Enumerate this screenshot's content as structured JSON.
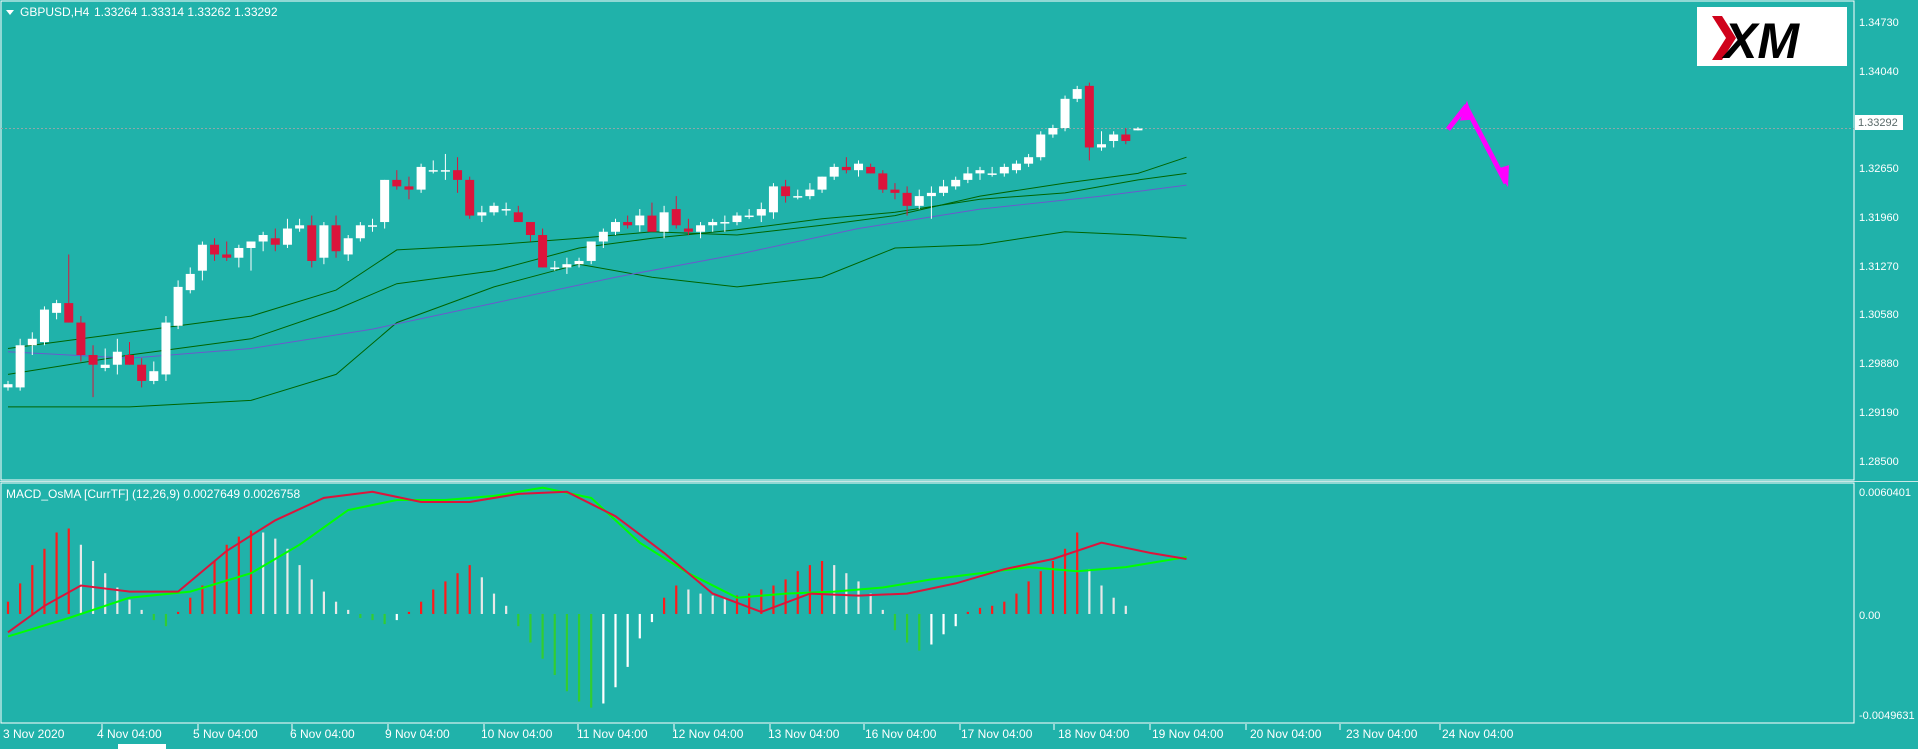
{
  "header": {
    "symbol": "GBPUSD,H4",
    "ohlc": "1.33264 1.33314 1.33262 1.33292"
  },
  "logo": {
    "text": "XM"
  },
  "price_panel": {
    "axis_labels": [
      "1.34730",
      "1.34040",
      "1.32650",
      "1.31960",
      "1.31270",
      "1.30580",
      "1.29880",
      "1.29190",
      "1.28500"
    ],
    "current_price": "1.33292"
  },
  "macd_panel": {
    "title": "MACD_OsMA [CurrTF] (12,26,9) 0.0027649 0.0026758",
    "axis_labels": [
      "0.0060401",
      "0.00",
      "-0.0049631"
    ]
  },
  "time_axis": {
    "labels": [
      "3 Nov 2020",
      "4 Nov 04:00",
      "5 Nov 04:00",
      "6 Nov 04:00",
      "9 Nov 04:00",
      "10 Nov 04:00",
      "11 Nov 04:00",
      "12 Nov 04:00",
      "13 Nov 04:00",
      "16 Nov 04:00",
      "17 Nov 04:00",
      "18 Nov 04:00",
      "19 Nov 04:00",
      "20 Nov 04:00",
      "23 Nov 04:00",
      "24 Nov 04:00"
    ]
  },
  "colors": {
    "background": "#20B2AA",
    "bull_candle": "#FFFFFF",
    "bear_candle": "#DC143C",
    "bollinger": "#006400",
    "moving_average": "#6A5ACD",
    "macd_line": "#DC143C",
    "signal_line": "#00FF00",
    "forecast_arrow": "#FF00FF"
  },
  "chart_data": [
    {
      "type": "candlestick",
      "title": "GBPUSD,H4",
      "ylim": [
        1.2815,
        1.3495
      ],
      "candles": [
        [
          1.293,
          1.294,
          1.2925,
          1.2935
        ],
        [
          1.293,
          1.3005,
          1.2925,
          1.2995
        ],
        [
          1.2995,
          1.3015,
          1.298,
          1.3005
        ],
        [
          1.3,
          1.3055,
          1.2995,
          1.305
        ],
        [
          1.3045,
          1.3065,
          1.3035,
          1.306
        ],
        [
          1.306,
          1.3135,
          1.303,
          1.303
        ],
        [
          1.303,
          1.304,
          1.297,
          1.298
        ],
        [
          1.298,
          1.2995,
          1.2915,
          1.2965
        ],
        [
          1.296,
          1.299,
          1.2955,
          1.2965
        ],
        [
          1.2965,
          1.3005,
          1.295,
          1.2985
        ],
        [
          1.298,
          1.3,
          1.2965,
          1.2965
        ],
        [
          1.2965,
          1.2975,
          1.293,
          1.294
        ],
        [
          1.294,
          1.297,
          1.2935,
          1.2955
        ],
        [
          1.295,
          1.304,
          1.294,
          1.303
        ],
        [
          1.3025,
          1.3095,
          1.302,
          1.3085
        ],
        [
          1.308,
          1.3115,
          1.3075,
          1.3105
        ],
        [
          1.311,
          1.3155,
          1.3095,
          1.315
        ],
        [
          1.315,
          1.316,
          1.3125,
          1.3135
        ],
        [
          1.3135,
          1.3155,
          1.3125,
          1.313
        ],
        [
          1.313,
          1.315,
          1.3115,
          1.3145
        ],
        [
          1.3145,
          1.3155,
          1.311,
          1.3155
        ],
        [
          1.3155,
          1.317,
          1.314,
          1.3165
        ],
        [
          1.316,
          1.3175,
          1.314,
          1.315
        ],
        [
          1.315,
          1.319,
          1.3145,
          1.3175
        ],
        [
          1.3175,
          1.319,
          1.317,
          1.318
        ],
        [
          1.318,
          1.3195,
          1.3115,
          1.3125
        ],
        [
          1.313,
          1.3185,
          1.312,
          1.318
        ],
        [
          1.318,
          1.3195,
          1.313,
          1.314
        ],
        [
          1.3135,
          1.3165,
          1.3125,
          1.316
        ],
        [
          1.316,
          1.3185,
          1.3155,
          1.318
        ],
        [
          1.318,
          1.319,
          1.317,
          1.318
        ],
        [
          1.3185,
          1.325,
          1.3175,
          1.325
        ],
        [
          1.325,
          1.3265,
          1.3235,
          1.324
        ],
        [
          1.324,
          1.3255,
          1.322,
          1.3235
        ],
        [
          1.3235,
          1.3275,
          1.323,
          1.327
        ],
        [
          1.3265,
          1.328,
          1.326,
          1.3265
        ],
        [
          1.3265,
          1.329,
          1.325,
          1.3265
        ],
        [
          1.3265,
          1.3285,
          1.323,
          1.325
        ],
        [
          1.325,
          1.3255,
          1.319,
          1.3195
        ],
        [
          1.3195,
          1.321,
          1.3185,
          1.32
        ],
        [
          1.32,
          1.3215,
          1.3195,
          1.321
        ],
        [
          1.3205,
          1.3215,
          1.3195,
          1.3205
        ],
        [
          1.32,
          1.321,
          1.3185,
          1.3185
        ],
        [
          1.3185,
          1.3185,
          1.3155,
          1.3165
        ],
        [
          1.3165,
          1.3175,
          1.3115,
          1.3115
        ],
        [
          1.3115,
          1.3125,
          1.311,
          1.3115
        ],
        [
          1.3115,
          1.313,
          1.3105,
          1.312
        ],
        [
          1.312,
          1.313,
          1.3115,
          1.3125
        ],
        [
          1.3125,
          1.3155,
          1.312,
          1.3155
        ],
        [
          1.3155,
          1.3175,
          1.3145,
          1.317
        ],
        [
          1.317,
          1.319,
          1.3165,
          1.3185
        ],
        [
          1.3185,
          1.3195,
          1.3175,
          1.318
        ],
        [
          1.318,
          1.3205,
          1.317,
          1.3195
        ],
        [
          1.3195,
          1.3215,
          1.3175,
          1.317
        ],
        [
          1.317,
          1.321,
          1.316,
          1.32
        ],
        [
          1.3205,
          1.3225,
          1.3175,
          1.318
        ],
        [
          1.3175,
          1.319,
          1.3165,
          1.317
        ],
        [
          1.317,
          1.3185,
          1.316,
          1.318
        ],
        [
          1.318,
          1.319,
          1.317,
          1.3185
        ],
        [
          1.3185,
          1.3195,
          1.317,
          1.3185
        ],
        [
          1.3185,
          1.32,
          1.318,
          1.3195
        ],
        [
          1.3195,
          1.3205,
          1.319,
          1.3195
        ],
        [
          1.3195,
          1.3215,
          1.3185,
          1.3205
        ],
        [
          1.32,
          1.3245,
          1.319,
          1.324
        ],
        [
          1.324,
          1.325,
          1.3215,
          1.3225
        ],
        [
          1.3225,
          1.3235,
          1.322,
          1.3225
        ],
        [
          1.3225,
          1.3245,
          1.322,
          1.3235
        ],
        [
          1.3235,
          1.3255,
          1.323,
          1.3255
        ],
        [
          1.3255,
          1.3275,
          1.325,
          1.327
        ],
        [
          1.327,
          1.3285,
          1.326,
          1.3265
        ],
        [
          1.3265,
          1.328,
          1.3255,
          1.3275
        ],
        [
          1.327,
          1.3275,
          1.326,
          1.326
        ],
        [
          1.326,
          1.3265,
          1.323,
          1.3235
        ],
        [
          1.3235,
          1.3245,
          1.322,
          1.323
        ],
        [
          1.323,
          1.324,
          1.3195,
          1.321
        ],
        [
          1.321,
          1.3235,
          1.3205,
          1.3225
        ],
        [
          1.3225,
          1.324,
          1.319,
          1.323
        ],
        [
          1.323,
          1.325,
          1.3225,
          1.324
        ],
        [
          1.324,
          1.3255,
          1.3235,
          1.325
        ],
        [
          1.325,
          1.327,
          1.3245,
          1.326
        ],
        [
          1.326,
          1.327,
          1.325,
          1.3265
        ],
        [
          1.326,
          1.327,
          1.3255,
          1.326
        ],
        [
          1.326,
          1.3275,
          1.3255,
          1.327
        ],
        [
          1.3265,
          1.328,
          1.326,
          1.3275
        ],
        [
          1.3275,
          1.329,
          1.327,
          1.3285
        ],
        [
          1.3285,
          1.3325,
          1.328,
          1.332
        ],
        [
          1.332,
          1.3335,
          1.3315,
          1.333
        ],
        [
          1.333,
          1.338,
          1.3325,
          1.3375
        ],
        [
          1.3375,
          1.3395,
          1.337,
          1.339
        ],
        [
          1.3395,
          1.34,
          1.328,
          1.33
        ],
        [
          1.33,
          1.3325,
          1.3295,
          1.3305
        ],
        [
          1.331,
          1.3325,
          1.33,
          1.332
        ],
        [
          1.332,
          1.333,
          1.3305,
          1.331
        ],
        [
          1.33264,
          1.33314,
          1.33262,
          1.33292
        ]
      ],
      "bollinger_upper": [
        [
          0,
          1.299
        ],
        [
          10,
          1.3015
        ],
        [
          20,
          1.304
        ],
        [
          27,
          1.308
        ],
        [
          32,
          1.3142
        ],
        [
          40,
          1.315
        ],
        [
          47,
          1.316
        ],
        [
          53,
          1.317
        ],
        [
          60,
          1.3165
        ],
        [
          67,
          1.318
        ],
        [
          73,
          1.3195
        ],
        [
          80,
          1.3225
        ],
        [
          87,
          1.3245
        ],
        [
          93,
          1.326
        ],
        [
          97,
          1.3285
        ]
      ],
      "bollinger_middle": [
        [
          0,
          1.295
        ],
        [
          10,
          1.298
        ],
        [
          20,
          1.3005
        ],
        [
          27,
          1.305
        ],
        [
          32,
          1.309
        ],
        [
          40,
          1.311
        ],
        [
          47,
          1.3145
        ],
        [
          53,
          1.316
        ],
        [
          60,
          1.3173
        ],
        [
          67,
          1.319
        ],
        [
          73,
          1.32
        ],
        [
          80,
          1.322
        ],
        [
          87,
          1.323
        ],
        [
          93,
          1.325
        ],
        [
          97,
          1.326
        ]
      ],
      "bollinger_lower": [
        [
          0,
          1.29
        ],
        [
          10,
          1.29
        ],
        [
          20,
          1.291
        ],
        [
          27,
          1.295
        ],
        [
          32,
          1.303
        ],
        [
          40,
          1.3085
        ],
        [
          47,
          1.312
        ],
        [
          53,
          1.31
        ],
        [
          60,
          1.3085
        ],
        [
          67,
          1.31
        ],
        [
          73,
          1.3145
        ],
        [
          80,
          1.315
        ],
        [
          87,
          1.317
        ],
        [
          93,
          1.3165
        ],
        [
          97,
          1.316
        ]
      ],
      "moving_average": [
        [
          0,
          1.2985
        ],
        [
          10,
          1.2975
        ],
        [
          20,
          1.299
        ],
        [
          30,
          1.302
        ],
        [
          40,
          1.306
        ],
        [
          50,
          1.31
        ],
        [
          60,
          1.3135
        ],
        [
          70,
          1.3175
        ],
        [
          80,
          1.3205
        ],
        [
          90,
          1.3225
        ],
        [
          97,
          1.3242
        ]
      ],
      "forecast": [
        [
          1.3325,
          1.3315
        ],
        [
          1.3375,
          1.3245
        ]
      ]
    },
    {
      "type": "bar",
      "title": "MACD_OsMA [CurrTF] (12,26,9) 0.0027649 0.0026758",
      "ylim": [
        -0.0049631,
        0.0060401
      ],
      "histogram": [
        0.0006,
        0.0015,
        0.0024,
        0.0032,
        0.004,
        0.0042,
        0.0034,
        0.0026,
        0.002,
        0.0013,
        0.0007,
        0.0002,
        -0.0003,
        -0.0006,
        0.0001,
        0.0008,
        0.0014,
        0.0026,
        0.0034,
        0.0038,
        0.0041,
        0.004,
        0.0037,
        0.0032,
        0.0024,
        0.0017,
        0.0011,
        0.0006,
        0.0002,
        -0.0002,
        -0.0003,
        -0.0005,
        -0.0003,
        0.0001,
        0.0006,
        0.0012,
        0.0016,
        0.002,
        0.0024,
        0.0018,
        0.001,
        0.0004,
        -0.0006,
        -0.0014,
        -0.0022,
        -0.003,
        -0.0038,
        -0.0043,
        -0.0046,
        -0.0044,
        -0.0036,
        -0.0026,
        -0.0012,
        -0.0004,
        0.0008,
        0.0014,
        0.0012,
        0.001,
        0.0009,
        0.0008,
        0.0009,
        0.001,
        0.0012,
        0.0014,
        0.0017,
        0.0021,
        0.0024,
        0.0026,
        0.0024,
        0.002,
        0.0016,
        0.001,
        0.0002,
        -0.0008,
        -0.0014,
        -0.0018,
        -0.0015,
        -0.001,
        -0.0006,
        0.0001,
        0.0003,
        0.0004,
        0.0006,
        0.001,
        0.0016,
        0.0021,
        0.0026,
        0.0032,
        0.004,
        0.0022,
        0.0014,
        0.0008,
        0.0004
      ],
      "macd_line": [
        [
          0,
          -0.0009
        ],
        [
          3,
          0.0004
        ],
        [
          6,
          0.0014
        ],
        [
          10,
          0.0011
        ],
        [
          14,
          0.0011
        ],
        [
          18,
          0.0031
        ],
        [
          22,
          0.0046
        ],
        [
          26,
          0.0057
        ],
        [
          30,
          0.006
        ],
        [
          34,
          0.0055
        ],
        [
          38,
          0.0055
        ],
        [
          42,
          0.0059
        ],
        [
          46,
          0.006
        ],
        [
          50,
          0.0048
        ],
        [
          54,
          0.003
        ],
        [
          58,
          0.001
        ],
        [
          62,
          0.0001
        ],
        [
          66,
          0.001
        ],
        [
          70,
          0.0009
        ],
        [
          74,
          0.001
        ],
        [
          78,
          0.0015
        ],
        [
          82,
          0.0022
        ],
        [
          86,
          0.0027
        ],
        [
          90,
          0.0035
        ],
        [
          94,
          0.003
        ],
        [
          97,
          0.0027
        ]
      ],
      "signal_line": [
        [
          0,
          -0.0011
        ],
        [
          5,
          -0.0002
        ],
        [
          10,
          0.0008
        ],
        [
          15,
          0.0011
        ],
        [
          20,
          0.002
        ],
        [
          24,
          0.0034
        ],
        [
          28,
          0.0051
        ],
        [
          32,
          0.0056
        ],
        [
          36,
          0.0056
        ],
        [
          40,
          0.0058
        ],
        [
          44,
          0.0062
        ],
        [
          48,
          0.0057
        ],
        [
          52,
          0.0035
        ],
        [
          56,
          0.002
        ],
        [
          60,
          0.0008
        ],
        [
          64,
          0.001
        ],
        [
          68,
          0.0011
        ],
        [
          72,
          0.0013
        ],
        [
          76,
          0.0017
        ],
        [
          80,
          0.002
        ],
        [
          84,
          0.0023
        ],
        [
          88,
          0.0021
        ],
        [
          92,
          0.0023
        ],
        [
          97,
          0.0028
        ]
      ]
    }
  ]
}
